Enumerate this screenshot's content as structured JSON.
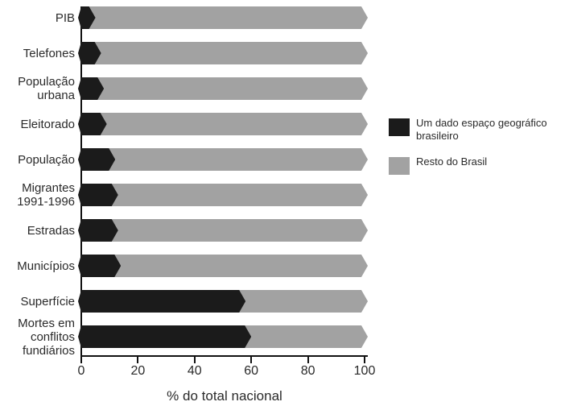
{
  "chart_data": {
    "type": "bar",
    "variant": "horizontal-stacked",
    "xlabel": "% do total nacional",
    "xlim": [
      0,
      100
    ],
    "xticks": [
      0,
      20,
      40,
      60,
      80,
      100
    ],
    "grid": false,
    "legend_position": "right",
    "categories": [
      "PIB",
      "Telefones",
      "População urbana",
      "Eleitorado",
      "População",
      "Migrantes 1991-1996",
      "Estradas",
      "Municípios",
      "Superfície",
      "Mortes em conflitos fundiários"
    ],
    "category_label_lines": [
      [
        "PIB"
      ],
      [
        "Telefones"
      ],
      [
        "População",
        "urbana"
      ],
      [
        "Eleitorado"
      ],
      [
        "População"
      ],
      [
        "Migrantes",
        "1991-1996"
      ],
      [
        "Estradas"
      ],
      [
        "Municípios"
      ],
      [
        "Superfície"
      ],
      [
        "Mortes em",
        "conflitos",
        "fundiários"
      ]
    ],
    "series": [
      {
        "name": "Um dado espaço geográfico brasileiro",
        "color": "#1b1b1b",
        "values": [
          5,
          7,
          8,
          9,
          12,
          13,
          13,
          14,
          58,
          60
        ]
      },
      {
        "name": "Resto do Brasil",
        "color": "#a2a2a2",
        "values": [
          95,
          93,
          92,
          91,
          88,
          87,
          87,
          86,
          42,
          40
        ]
      }
    ]
  },
  "legend": {
    "items": [
      {
        "label_lines": [
          "Um dado espaço geográfico",
          "brasileiro"
        ],
        "color": "#1b1b1b"
      },
      {
        "label_lines": [
          "Resto do Brasil"
        ],
        "color": "#a2a2a2"
      }
    ]
  },
  "axis": {
    "tick_labels": [
      "0",
      "20",
      "40",
      "60",
      "80",
      "100"
    ]
  }
}
